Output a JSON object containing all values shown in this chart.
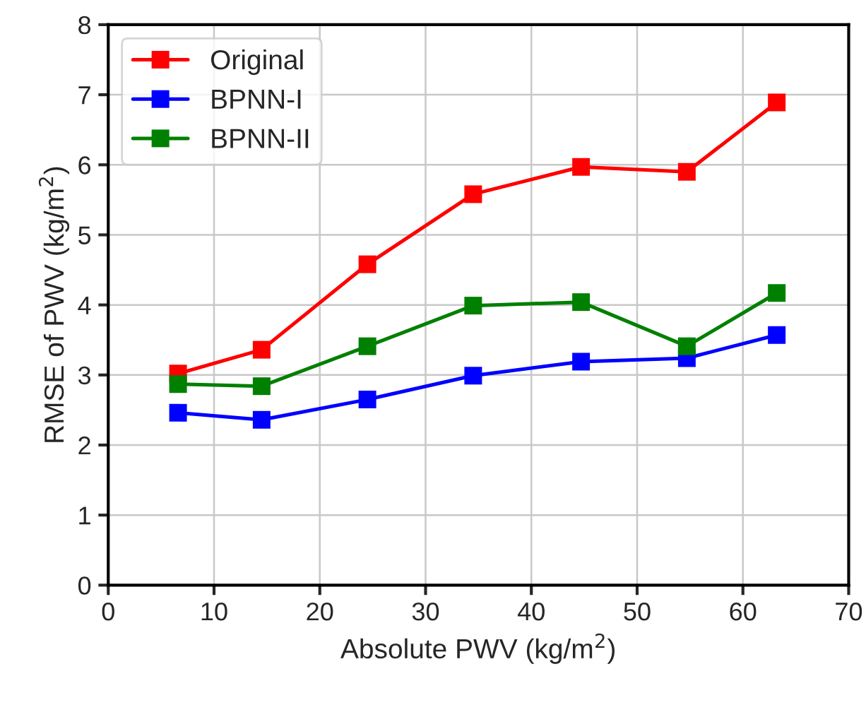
{
  "chart_data": {
    "type": "line",
    "xlabel": "Absolute PWV (kg/m$^{2}$)",
    "ylabel": "RMSE of PWV (kg/m$^{2}$)",
    "x": [
      6.6,
      14.5,
      24.5,
      34.5,
      44.7,
      54.7,
      63.2
    ],
    "series": [
      {
        "name": "Original",
        "color": "#ff0000",
        "values": [
          3.02,
          3.36,
          4.58,
          5.58,
          5.97,
          5.9,
          6.89
        ]
      },
      {
        "name": "BPNN-I",
        "color": "#0000ff",
        "values": [
          2.46,
          2.36,
          2.65,
          2.99,
          3.19,
          3.24,
          3.57
        ]
      },
      {
        "name": "BPNN-II",
        "color": "#008000",
        "values": [
          2.87,
          2.84,
          3.41,
          3.99,
          4.04,
          3.41,
          4.17
        ]
      }
    ],
    "xlim": [
      0,
      70
    ],
    "xticks": [
      0,
      10,
      20,
      30,
      40,
      50,
      60,
      70
    ],
    "ylim": [
      0,
      8
    ],
    "yticks": [
      0,
      1,
      2,
      3,
      4,
      5,
      6,
      7,
      8
    ],
    "grid": true,
    "legend": "top left",
    "marker": "square",
    "line_style": "solid"
  }
}
